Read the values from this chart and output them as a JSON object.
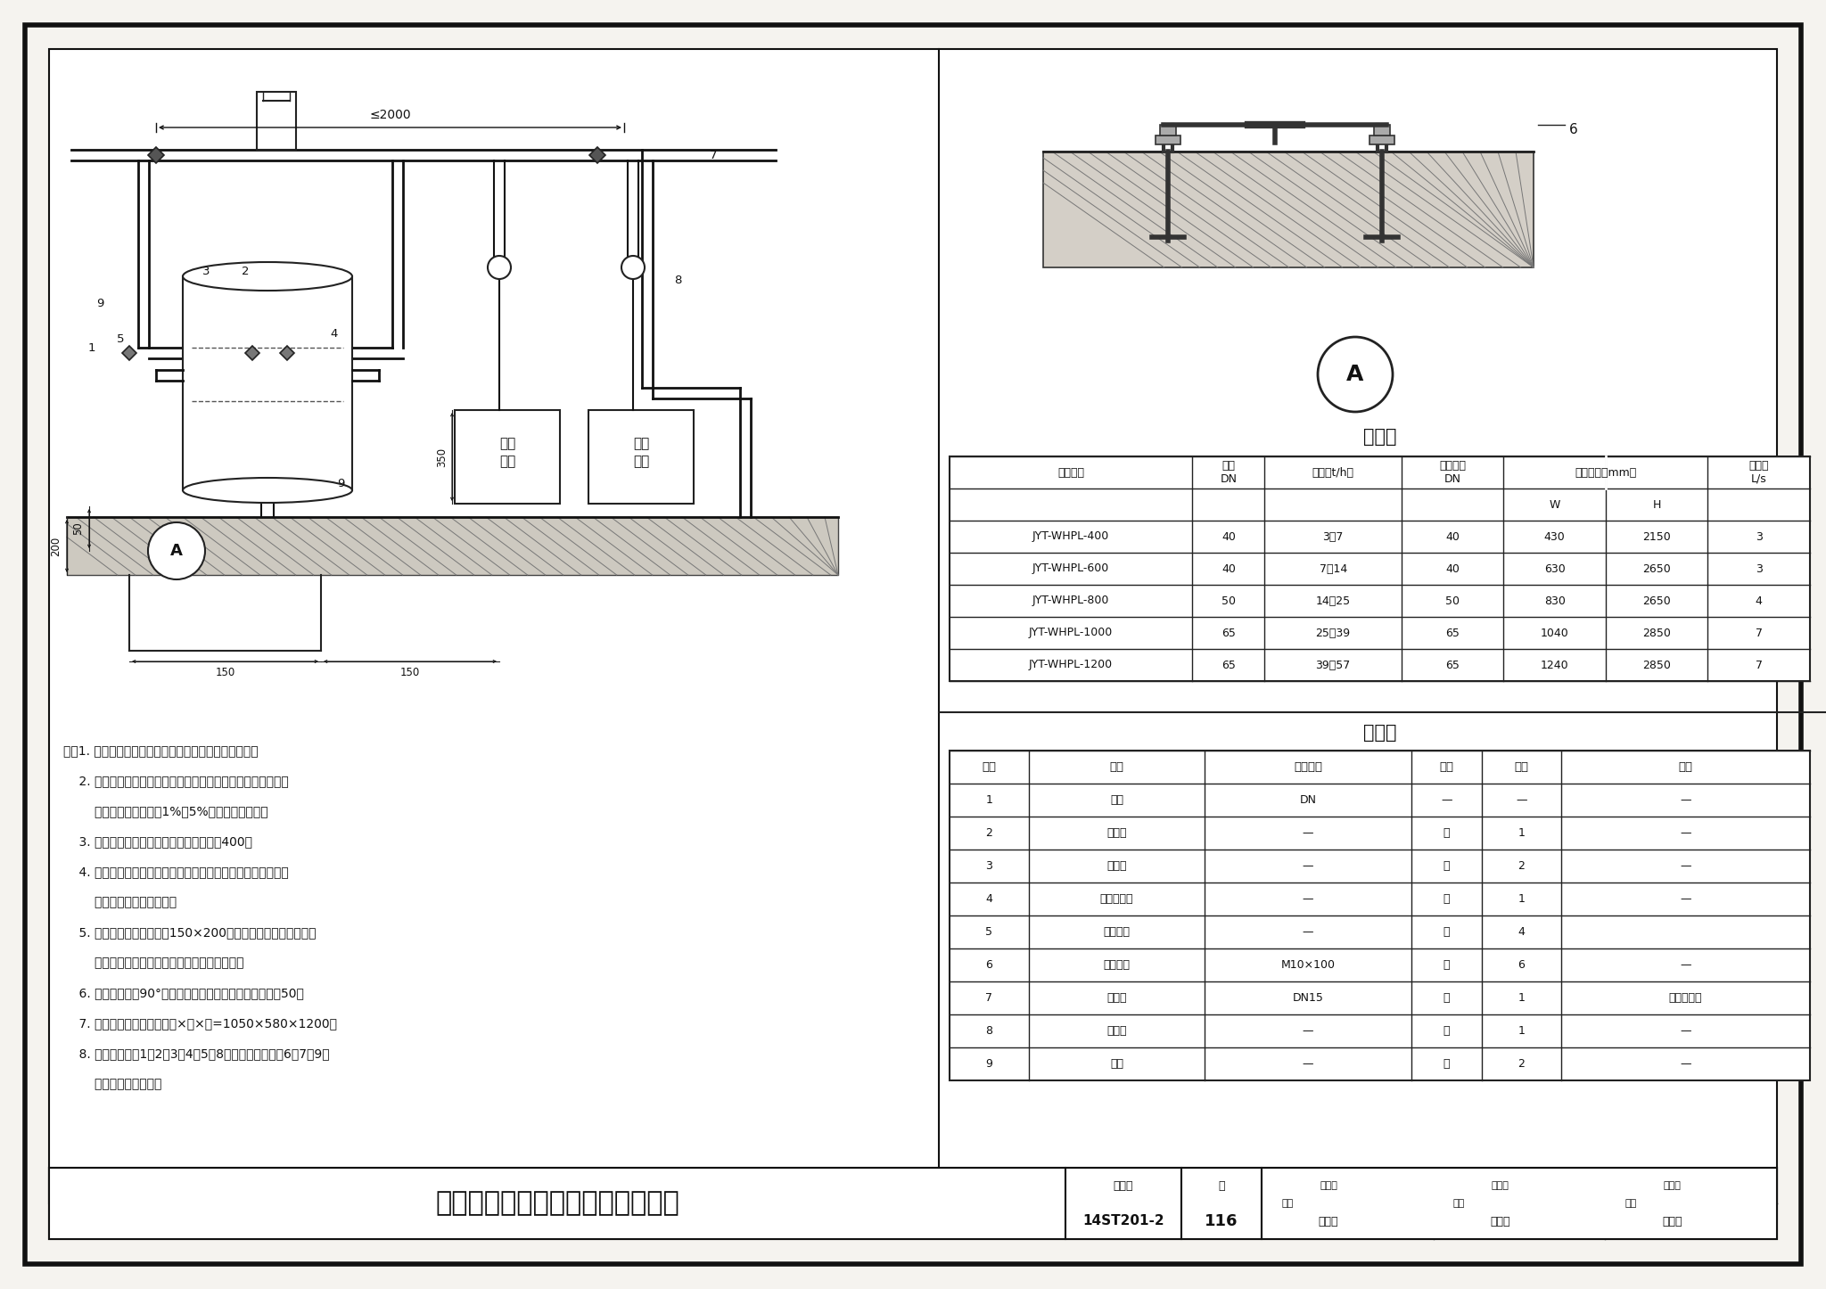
{
  "title": "冷却水系统物化旁流水处理器安装",
  "fig_number": "14ST201-2",
  "page": "116",
  "bg_color": "#f5f3ef",
  "selection_table_title": "选型表",
  "selection_table_data": [
    [
      "JYT-WHPL-400",
      "40",
      "3～7",
      "40",
      "430",
      "2150",
      "3"
    ],
    [
      "JYT-WHPL-600",
      "40",
      "7～14",
      "40",
      "630",
      "2650",
      "3"
    ],
    [
      "JYT-WHPL-800",
      "50",
      "14～25",
      "50",
      "830",
      "2650",
      "4"
    ],
    [
      "JYT-WHPL-1000",
      "65",
      "25～39",
      "65",
      "1040",
      "2850",
      "7"
    ],
    [
      "JYT-WHPL-1200",
      "65",
      "39～57",
      "65",
      "1240",
      "2850",
      "7"
    ]
  ],
  "material_table_title": "材料表",
  "material_table_headers": [
    "编号",
    "名称",
    "型号规格",
    "单位",
    "数量",
    "备注"
  ],
  "material_table_data": [
    [
      "1",
      "主机",
      "DN",
      "—",
      "—",
      "—"
    ],
    [
      "2",
      "电控箱",
      "—",
      "个",
      "1",
      "—"
    ],
    [
      "3",
      "压力表",
      "—",
      "个",
      "2",
      "—"
    ],
    [
      "4",
      "水质排污阀",
      "—",
      "个",
      "1",
      "—"
    ],
    [
      "5",
      "电动球阀",
      "—",
      "个",
      "4",
      ""
    ],
    [
      "6",
      "膨胀螺栓",
      "M10×100",
      "个",
      "6",
      "—"
    ],
    [
      "7",
      "加药孔",
      "DN15",
      "个",
      "1",
      "预留内螺纹"
    ],
    [
      "8",
      "加药泵",
      "—",
      "个",
      "1",
      "—"
    ],
    [
      "9",
      "支架",
      "—",
      "个",
      "2",
      "—"
    ]
  ],
  "notes": [
    "注：1. 本图适用于空调冷却水系统旁流水处理器的安装。",
    "    2. 物化旁流水处理器是采用物理方法和化学方法相结合的旁流",
    "        式（过滤系统水量的1%～5%）综合处理设备。",
    "    3. 设备距外围管路及建筑物的距离应大于400。",
    "    4. 系统冲洗管路时，需先关闭设备的进出口阀门，严禁将设备",
    "        作为系统洗清的泄水口。",
    "    5. 机房排污沟尺寸至少为150×200，如果机房尺寸小于此尺寸",
    "        需要把各个排污口接入排水管引入机房地沟。",
    "    6. 泄水管末端设90°弯头，弯头底部距排水沟地面高度＞50。",
    "    7. 冷却水加药装置尺寸，长×宽×高=1050×580×1200。",
    "    8. 材料表中编号1、2、3、4、5、8为设备自带，编号6、7、9为",
    "        现场安装单位负责。"
  ],
  "footer_title": "冷却水系统物化旁流水处理器安装",
  "footer_jihe": "图集号",
  "footer_jihe_val": "14ST201-2",
  "footer_page_label": "页",
  "footer_page_val": "116",
  "footer_audit": "审核",
  "footer_audit_name1": "韩云龙",
  "footer_audit_name2": "韩云龙",
  "footer_check": "校对",
  "footer_check_name1": "肖柱员",
  "footer_check_name2": "肖柱员",
  "footer_design": "设计",
  "footer_design_name1": "刘宗峰",
  "footer_design_name2": "刘宗峰"
}
